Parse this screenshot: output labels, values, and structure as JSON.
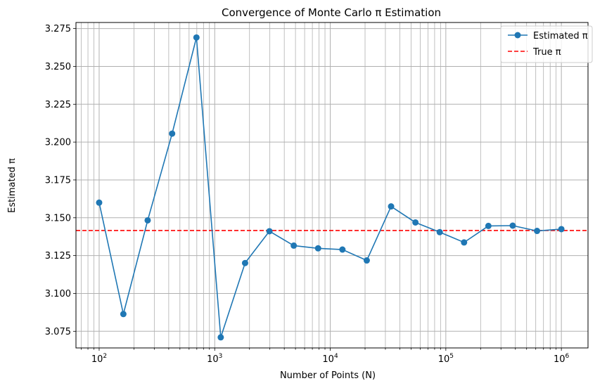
{
  "chart_data": {
    "type": "line",
    "title": "Convergence of Monte Carlo π Estimation",
    "xlabel": "Number of Points (N)",
    "ylabel": "Estimated π",
    "xscale": "log",
    "xlim": [
      63,
      1700000
    ],
    "ylim": [
      3.064,
      3.279
    ],
    "x_ticks": [
      {
        "value": 100,
        "base": "10",
        "exp": "2"
      },
      {
        "value": 1000,
        "base": "10",
        "exp": "3"
      },
      {
        "value": 10000,
        "base": "10",
        "exp": "4"
      },
      {
        "value": 100000,
        "base": "10",
        "exp": "5"
      },
      {
        "value": 1000000,
        "base": "10",
        "exp": "6"
      }
    ],
    "y_ticks": [
      "3.075",
      "3.100",
      "3.125",
      "3.150",
      "3.175",
      "3.200",
      "3.225",
      "3.250",
      "3.275"
    ],
    "grid": true,
    "legend_position": "top-right",
    "series": [
      {
        "name": "Estimated π",
        "color": "#1f77b4",
        "marker": "circle",
        "points": [
          [
            100,
            3.16
          ],
          [
            162,
            3.0864
          ],
          [
            263,
            3.1483
          ],
          [
            428,
            3.2056
          ],
          [
            695,
            3.2691
          ],
          [
            1128,
            3.071
          ],
          [
            1832,
            3.1201
          ],
          [
            2976,
            3.1411
          ],
          [
            4833,
            3.1316
          ],
          [
            7847,
            3.1298
          ],
          [
            12742,
            3.129
          ],
          [
            20691,
            3.1218
          ],
          [
            33598,
            3.1575
          ],
          [
            54555,
            3.1469
          ],
          [
            88586,
            3.1405
          ],
          [
            143844,
            3.1337
          ],
          [
            233572,
            3.1446
          ],
          [
            379269,
            3.1448
          ],
          [
            615848,
            3.1413
          ],
          [
            1000000,
            3.1425
          ]
        ]
      }
    ],
    "reference_line": {
      "name": "True π",
      "value": 3.14159,
      "color": "#ff0000",
      "style": "dashed"
    }
  }
}
